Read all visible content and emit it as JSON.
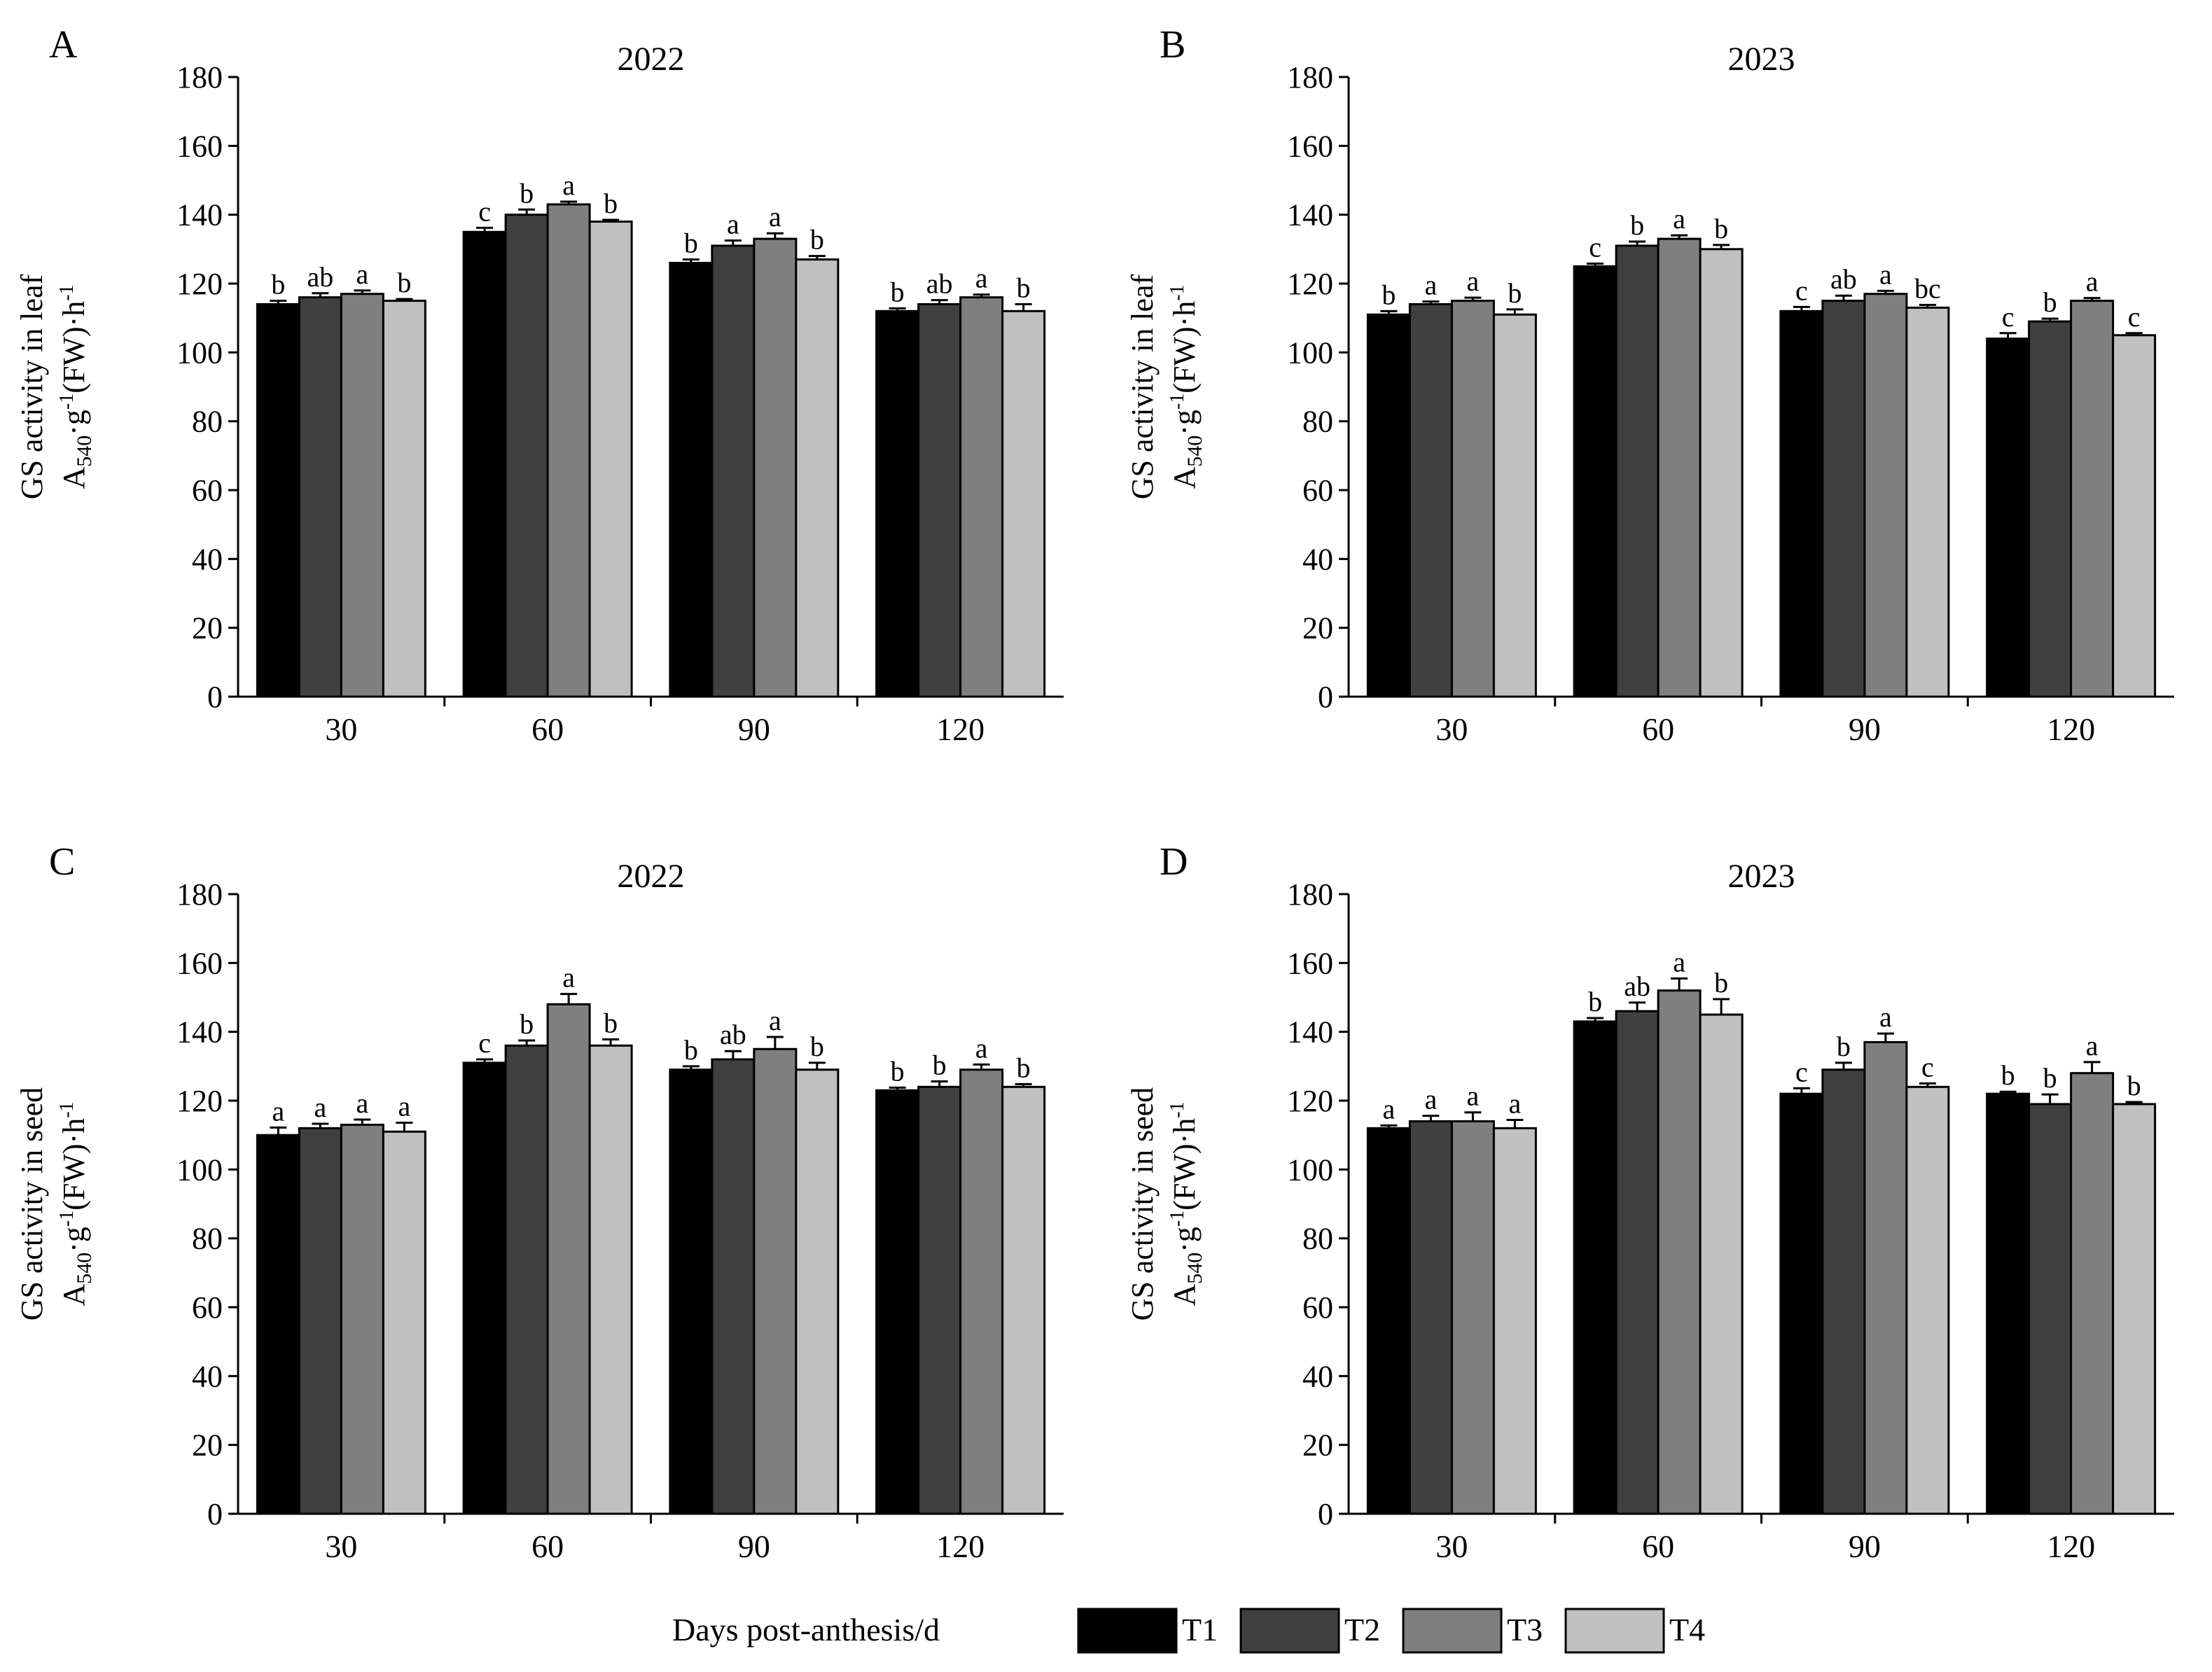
{
  "figure": {
    "x_axis_label": "Days post-anthesis/d",
    "legend": [
      {
        "name": "T1",
        "color": "#000000"
      },
      {
        "name": "T2",
        "color": "#404040"
      },
      {
        "name": "T3",
        "color": "#7f7f7f"
      },
      {
        "name": "T4",
        "color": "#c0c0c0"
      }
    ],
    "y_labels": {
      "leaf": {
        "line1": "GS activity in leaf",
        "a": "A",
        "sub": "540",
        "g": "·g",
        "sup1": "-1",
        "fw": "(FW)·h",
        "sup2": "-1"
      },
      "seed": {
        "line1": "GS activity in seed",
        "a": "A",
        "sub": "540",
        "g": "·g",
        "sup1": "-1",
        "fw": "(FW)·h",
        "sup2": "-1"
      }
    }
  },
  "chart_data": [
    {
      "panel": "A",
      "title": "2022",
      "type": "bar",
      "organ": "leaf",
      "categories": [
        "30",
        "60",
        "90",
        "120"
      ],
      "ylim": [
        0,
        180
      ],
      "yticks": [
        0,
        20,
        40,
        60,
        80,
        100,
        120,
        140,
        160,
        180
      ],
      "xlabel": "Days post-anthesis/d",
      "series": [
        {
          "name": "T1",
          "values": [
            114,
            135,
            126,
            112
          ],
          "errors": [
            1,
            1.2,
            1,
            0.8
          ],
          "letters": [
            "b",
            "c",
            "b",
            "b"
          ]
        },
        {
          "name": "T2",
          "values": [
            116,
            140,
            131,
            114
          ],
          "errors": [
            1.2,
            1.5,
            1.5,
            1.2
          ],
          "letters": [
            "ab",
            "b",
            "a",
            "ab"
          ]
        },
        {
          "name": "T3",
          "values": [
            117,
            143,
            133,
            116
          ],
          "errors": [
            1,
            0.8,
            1.6,
            0.8
          ],
          "letters": [
            "a",
            "a",
            "a",
            "a"
          ]
        },
        {
          "name": "T4",
          "values": [
            115,
            138,
            127,
            112
          ],
          "errors": [
            0.5,
            0.5,
            1,
            2
          ],
          "letters": [
            "b",
            "b",
            "b",
            "b"
          ]
        }
      ]
    },
    {
      "panel": "B",
      "title": "2023",
      "type": "bar",
      "organ": "leaf",
      "categories": [
        "30",
        "60",
        "90",
        "120"
      ],
      "ylim": [
        0,
        180
      ],
      "yticks": [
        0,
        20,
        40,
        60,
        80,
        100,
        120,
        140,
        160,
        180
      ],
      "xlabel": "Days post-anthesis/d",
      "series": [
        {
          "name": "T1",
          "values": [
            111,
            125,
            112,
            104
          ],
          "errors": [
            1,
            0.8,
            1.2,
            1.6
          ],
          "letters": [
            "b",
            "c",
            "c",
            "c"
          ]
        },
        {
          "name": "T2",
          "values": [
            114,
            131,
            115,
            109
          ],
          "errors": [
            0.8,
            1.2,
            1.5,
            0.8
          ],
          "letters": [
            "a",
            "b",
            "ab",
            "b"
          ]
        },
        {
          "name": "T3",
          "values": [
            115,
            133,
            117,
            115
          ],
          "errors": [
            0.9,
            1,
            0.9,
            0.8
          ],
          "letters": [
            "a",
            "a",
            "a",
            "a"
          ]
        },
        {
          "name": "T4",
          "values": [
            111,
            130,
            113,
            105
          ],
          "errors": [
            1.5,
            1.2,
            0.8,
            0.6
          ],
          "letters": [
            "b",
            "b",
            "bc",
            "c"
          ]
        }
      ]
    },
    {
      "panel": "C",
      "title": "2022",
      "type": "bar",
      "organ": "seed",
      "categories": [
        "30",
        "60",
        "90",
        "120"
      ],
      "ylim": [
        0,
        180
      ],
      "yticks": [
        0,
        20,
        40,
        60,
        80,
        100,
        120,
        140,
        160,
        180
      ],
      "xlabel": "Days post-anthesis/d",
      "series": [
        {
          "name": "T1",
          "values": [
            110,
            131,
            129,
            123
          ],
          "errors": [
            2.2,
            1,
            1,
            0.8
          ],
          "letters": [
            "a",
            "c",
            "b",
            "b"
          ]
        },
        {
          "name": "T2",
          "values": [
            112,
            136,
            132,
            124
          ],
          "errors": [
            1.3,
            1.5,
            2.4,
            1.6
          ],
          "letters": [
            "a",
            "b",
            "ab",
            "b"
          ]
        },
        {
          "name": "T3",
          "values": [
            113,
            148,
            135,
            129
          ],
          "errors": [
            1.5,
            3,
            3.5,
            1.5
          ],
          "letters": [
            "a",
            "a",
            "a",
            "a"
          ]
        },
        {
          "name": "T4",
          "values": [
            111,
            136,
            129,
            124
          ],
          "errors": [
            2.6,
            1.8,
            2,
            0.8
          ],
          "letters": [
            "a",
            "b",
            "b",
            "b"
          ]
        }
      ]
    },
    {
      "panel": "D",
      "title": "2023",
      "type": "bar",
      "organ": "seed",
      "categories": [
        "30",
        "60",
        "90",
        "120"
      ],
      "ylim": [
        0,
        180
      ],
      "yticks": [
        0,
        20,
        40,
        60,
        80,
        100,
        120,
        140,
        160,
        180
      ],
      "xlabel": "Days post-anthesis/d",
      "series": [
        {
          "name": "T1",
          "values": [
            112,
            143,
            122,
            122
          ],
          "errors": [
            0.8,
            1,
            1.6,
            0.6
          ],
          "letters": [
            "a",
            "b",
            "c",
            "b"
          ]
        },
        {
          "name": "T2",
          "values": [
            114,
            146,
            129,
            119
          ],
          "errors": [
            1.6,
            2.5,
            2,
            2.8
          ],
          "letters": [
            "a",
            "ab",
            "b",
            "b"
          ]
        },
        {
          "name": "T3",
          "values": [
            114,
            152,
            137,
            128
          ],
          "errors": [
            2.6,
            3.5,
            2.5,
            3.2
          ],
          "letters": [
            "a",
            "a",
            "a",
            "a"
          ]
        },
        {
          "name": "T4",
          "values": [
            112,
            145,
            124,
            119
          ],
          "errors": [
            2.4,
            4.5,
            1,
            0.6
          ],
          "letters": [
            "a",
            "b",
            "c",
            "b"
          ]
        }
      ]
    }
  ]
}
